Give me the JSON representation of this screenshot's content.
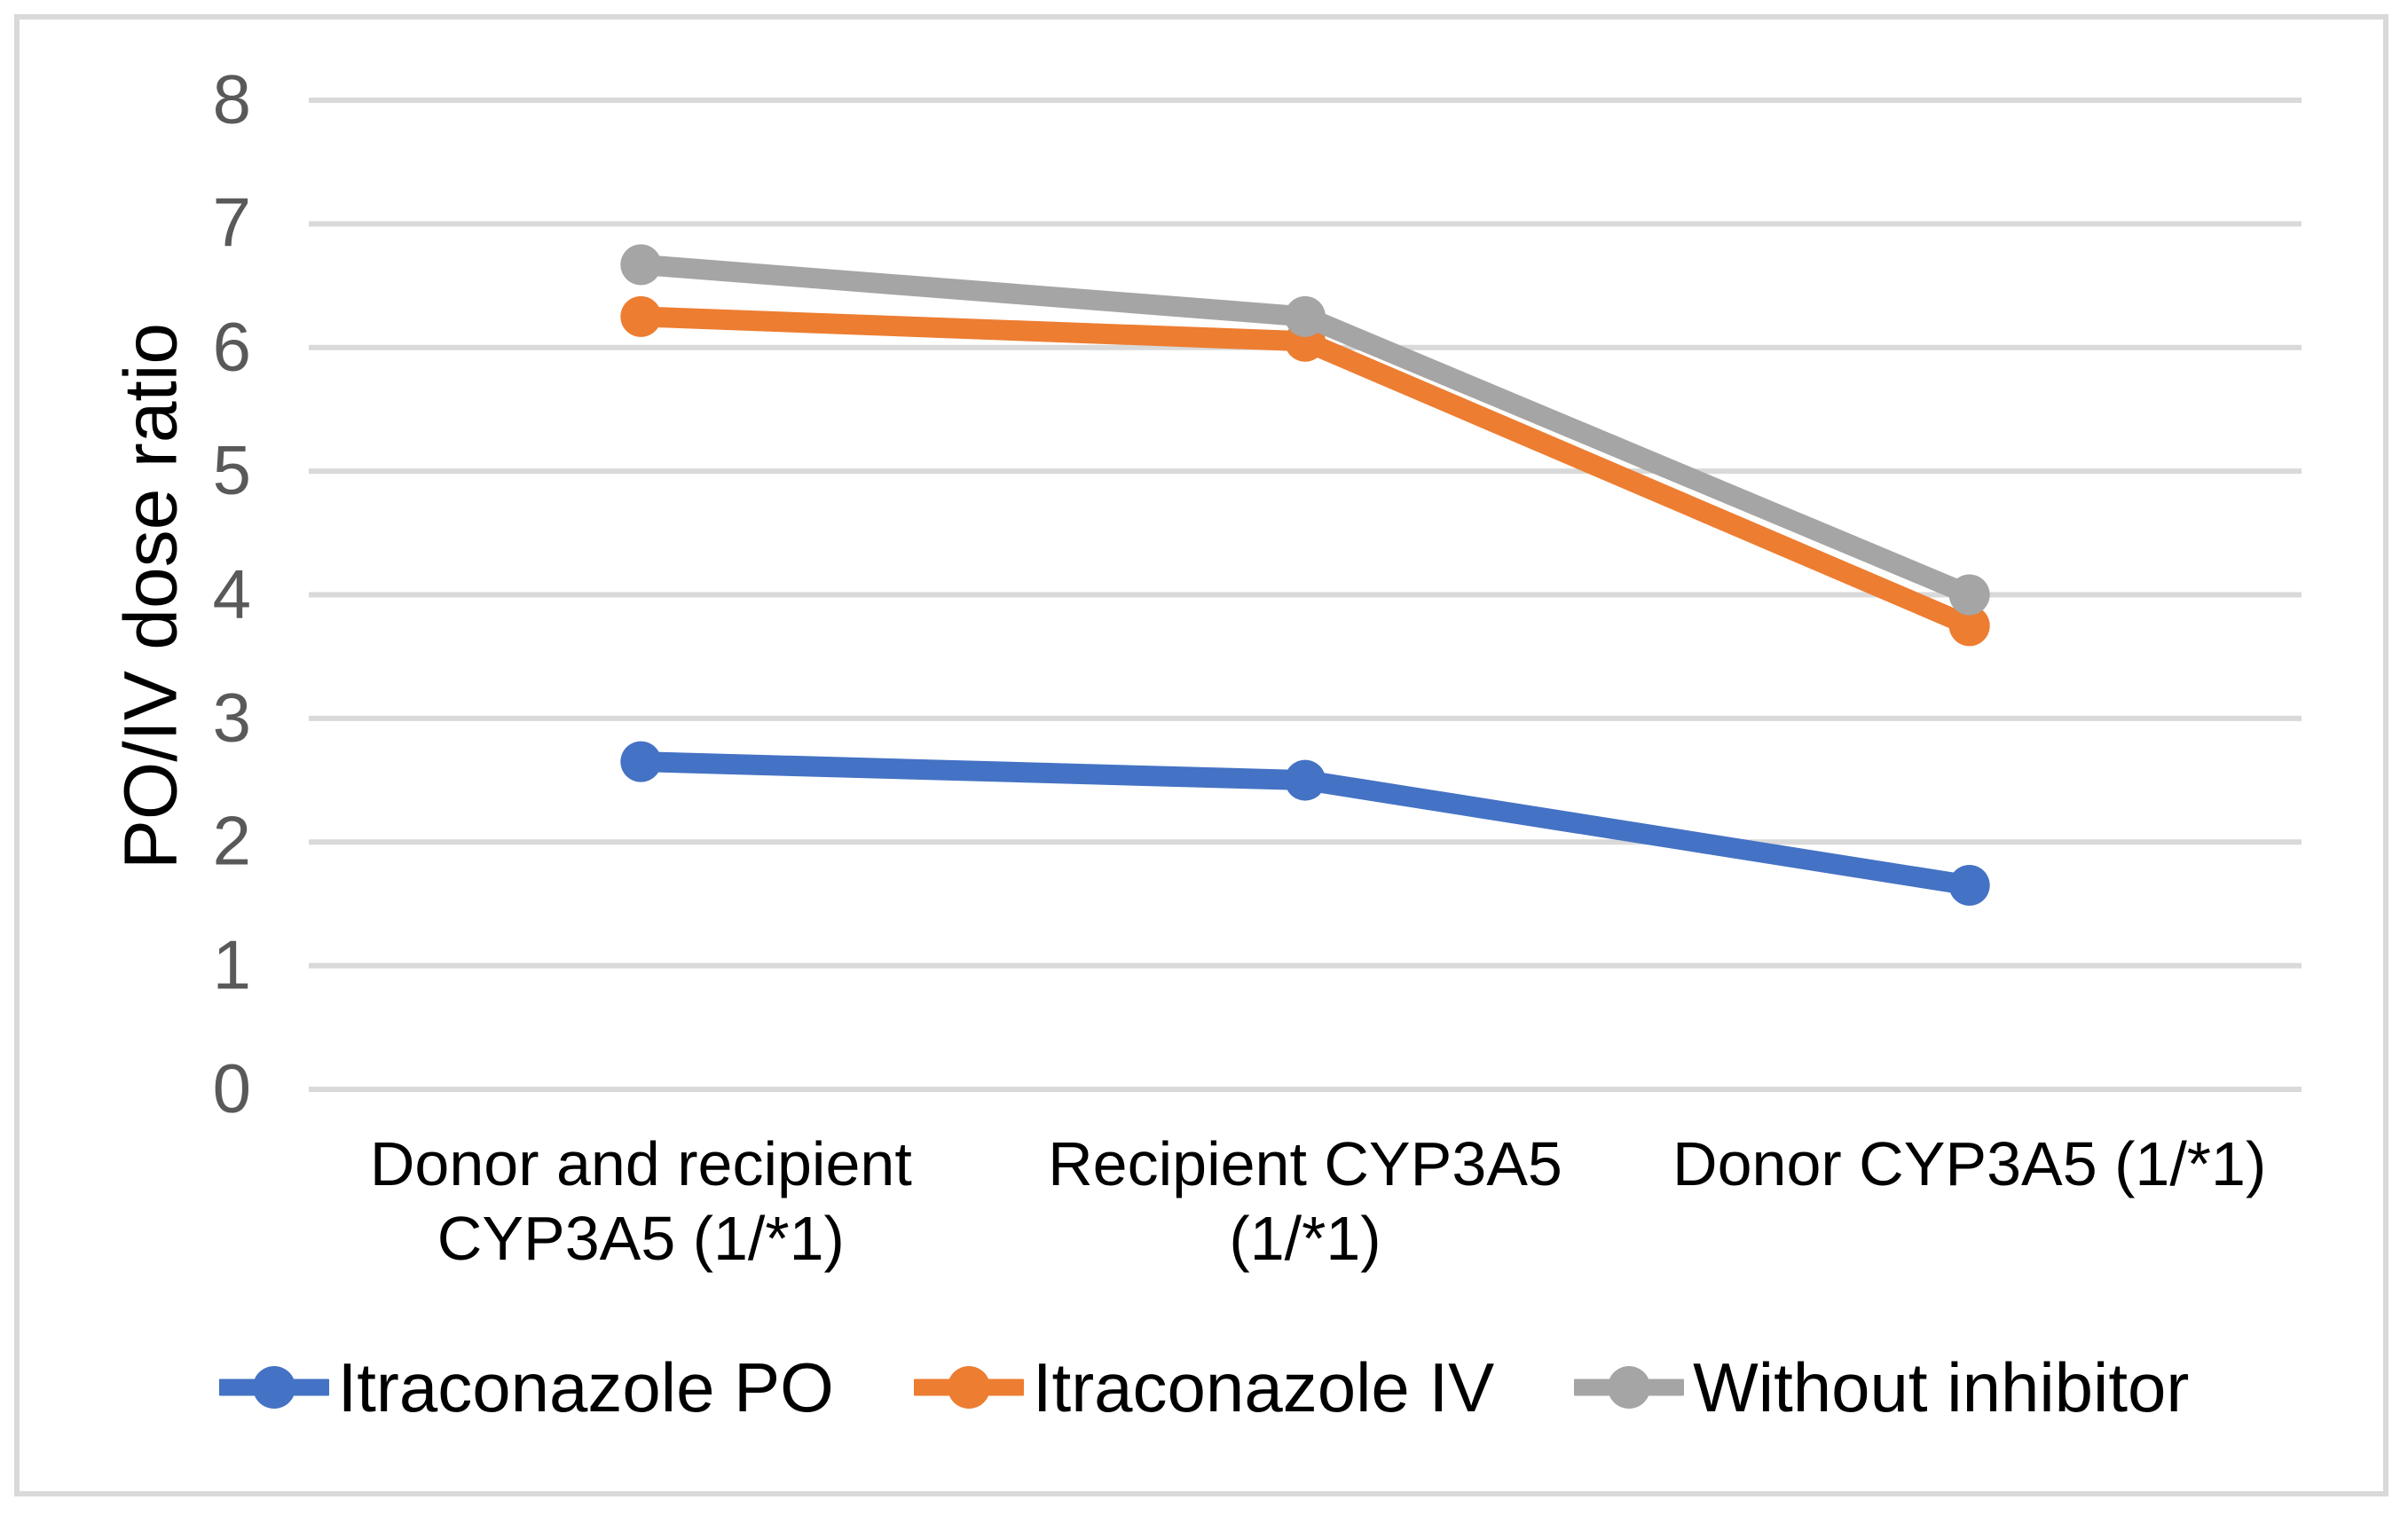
{
  "figure": {
    "background_color": "#FFFFFF",
    "border_color": "#D9D9D9",
    "gridline_color": "#D9D9D9",
    "tick_label_color": "#595959",
    "text_color": "#000000"
  },
  "chart_data": {
    "type": "line",
    "title": "",
    "xlabel": "",
    "ylabel": "PO/IV dose ratio",
    "ylim": [
      0,
      8
    ],
    "yticks": [
      0,
      1,
      2,
      3,
      4,
      5,
      6,
      7,
      8
    ],
    "grid": "horizontal",
    "legend_position": "bottom",
    "marker": "circle",
    "categories": [
      "Donor and recipient\nCYP3A5 (1/*1)",
      "Recipient CYP3A5\n(1/*1)",
      "Donor  CYP3A5 (1/*1)"
    ],
    "series": [
      {
        "name": "Itraconazole PO",
        "color": "#4472C4",
        "values": [
          2.65,
          2.5,
          1.65
        ]
      },
      {
        "name": "Itraconazole IV",
        "color": "#ED7D31",
        "values": [
          6.25,
          6.05,
          3.75
        ]
      },
      {
        "name": "Without inhibitor",
        "color": "#A5A5A5",
        "values": [
          6.67,
          6.25,
          4.0
        ]
      }
    ]
  }
}
